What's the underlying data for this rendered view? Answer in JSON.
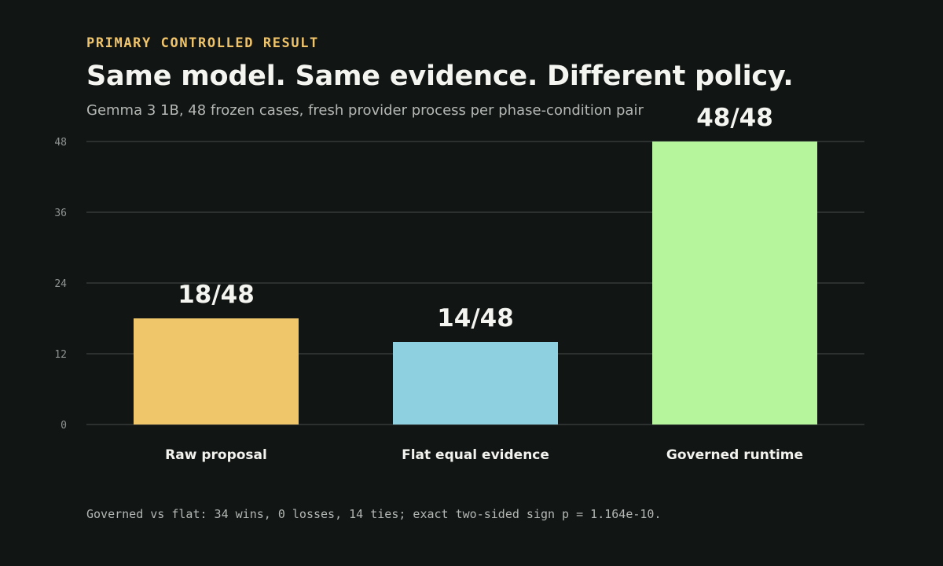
{
  "header": {
    "eyebrow": "PRIMARY CONTROLLED RESULT",
    "title": "Same model. Same evidence. Different policy.",
    "subtitle": "Gemma 3 1B, 48 frozen cases, fresh provider process per phase-condition pair"
  },
  "footnote": "Governed vs flat: 34 wins, 0 losses, 14 ties; exact two-sided sign p = 1.164e-10.",
  "chart_data": {
    "type": "bar",
    "title": "Same model. Same evidence. Different policy.",
    "subtitle": "Gemma 3 1B, 48 frozen cases, fresh provider process per phase-condition pair",
    "xlabel": "",
    "ylabel": "",
    "categories": [
      "Raw proposal",
      "Flat equal evidence",
      "Governed runtime"
    ],
    "values": [
      18,
      14,
      48
    ],
    "data_labels": [
      "18/48",
      "14/48",
      "48/48"
    ],
    "colors": [
      "#f0c66a",
      "#8fd0e0",
      "#b6f59c"
    ],
    "ylim": [
      0,
      48
    ],
    "yticks": [
      0,
      12,
      24,
      36,
      48
    ],
    "grid": true,
    "legend": "none"
  }
}
